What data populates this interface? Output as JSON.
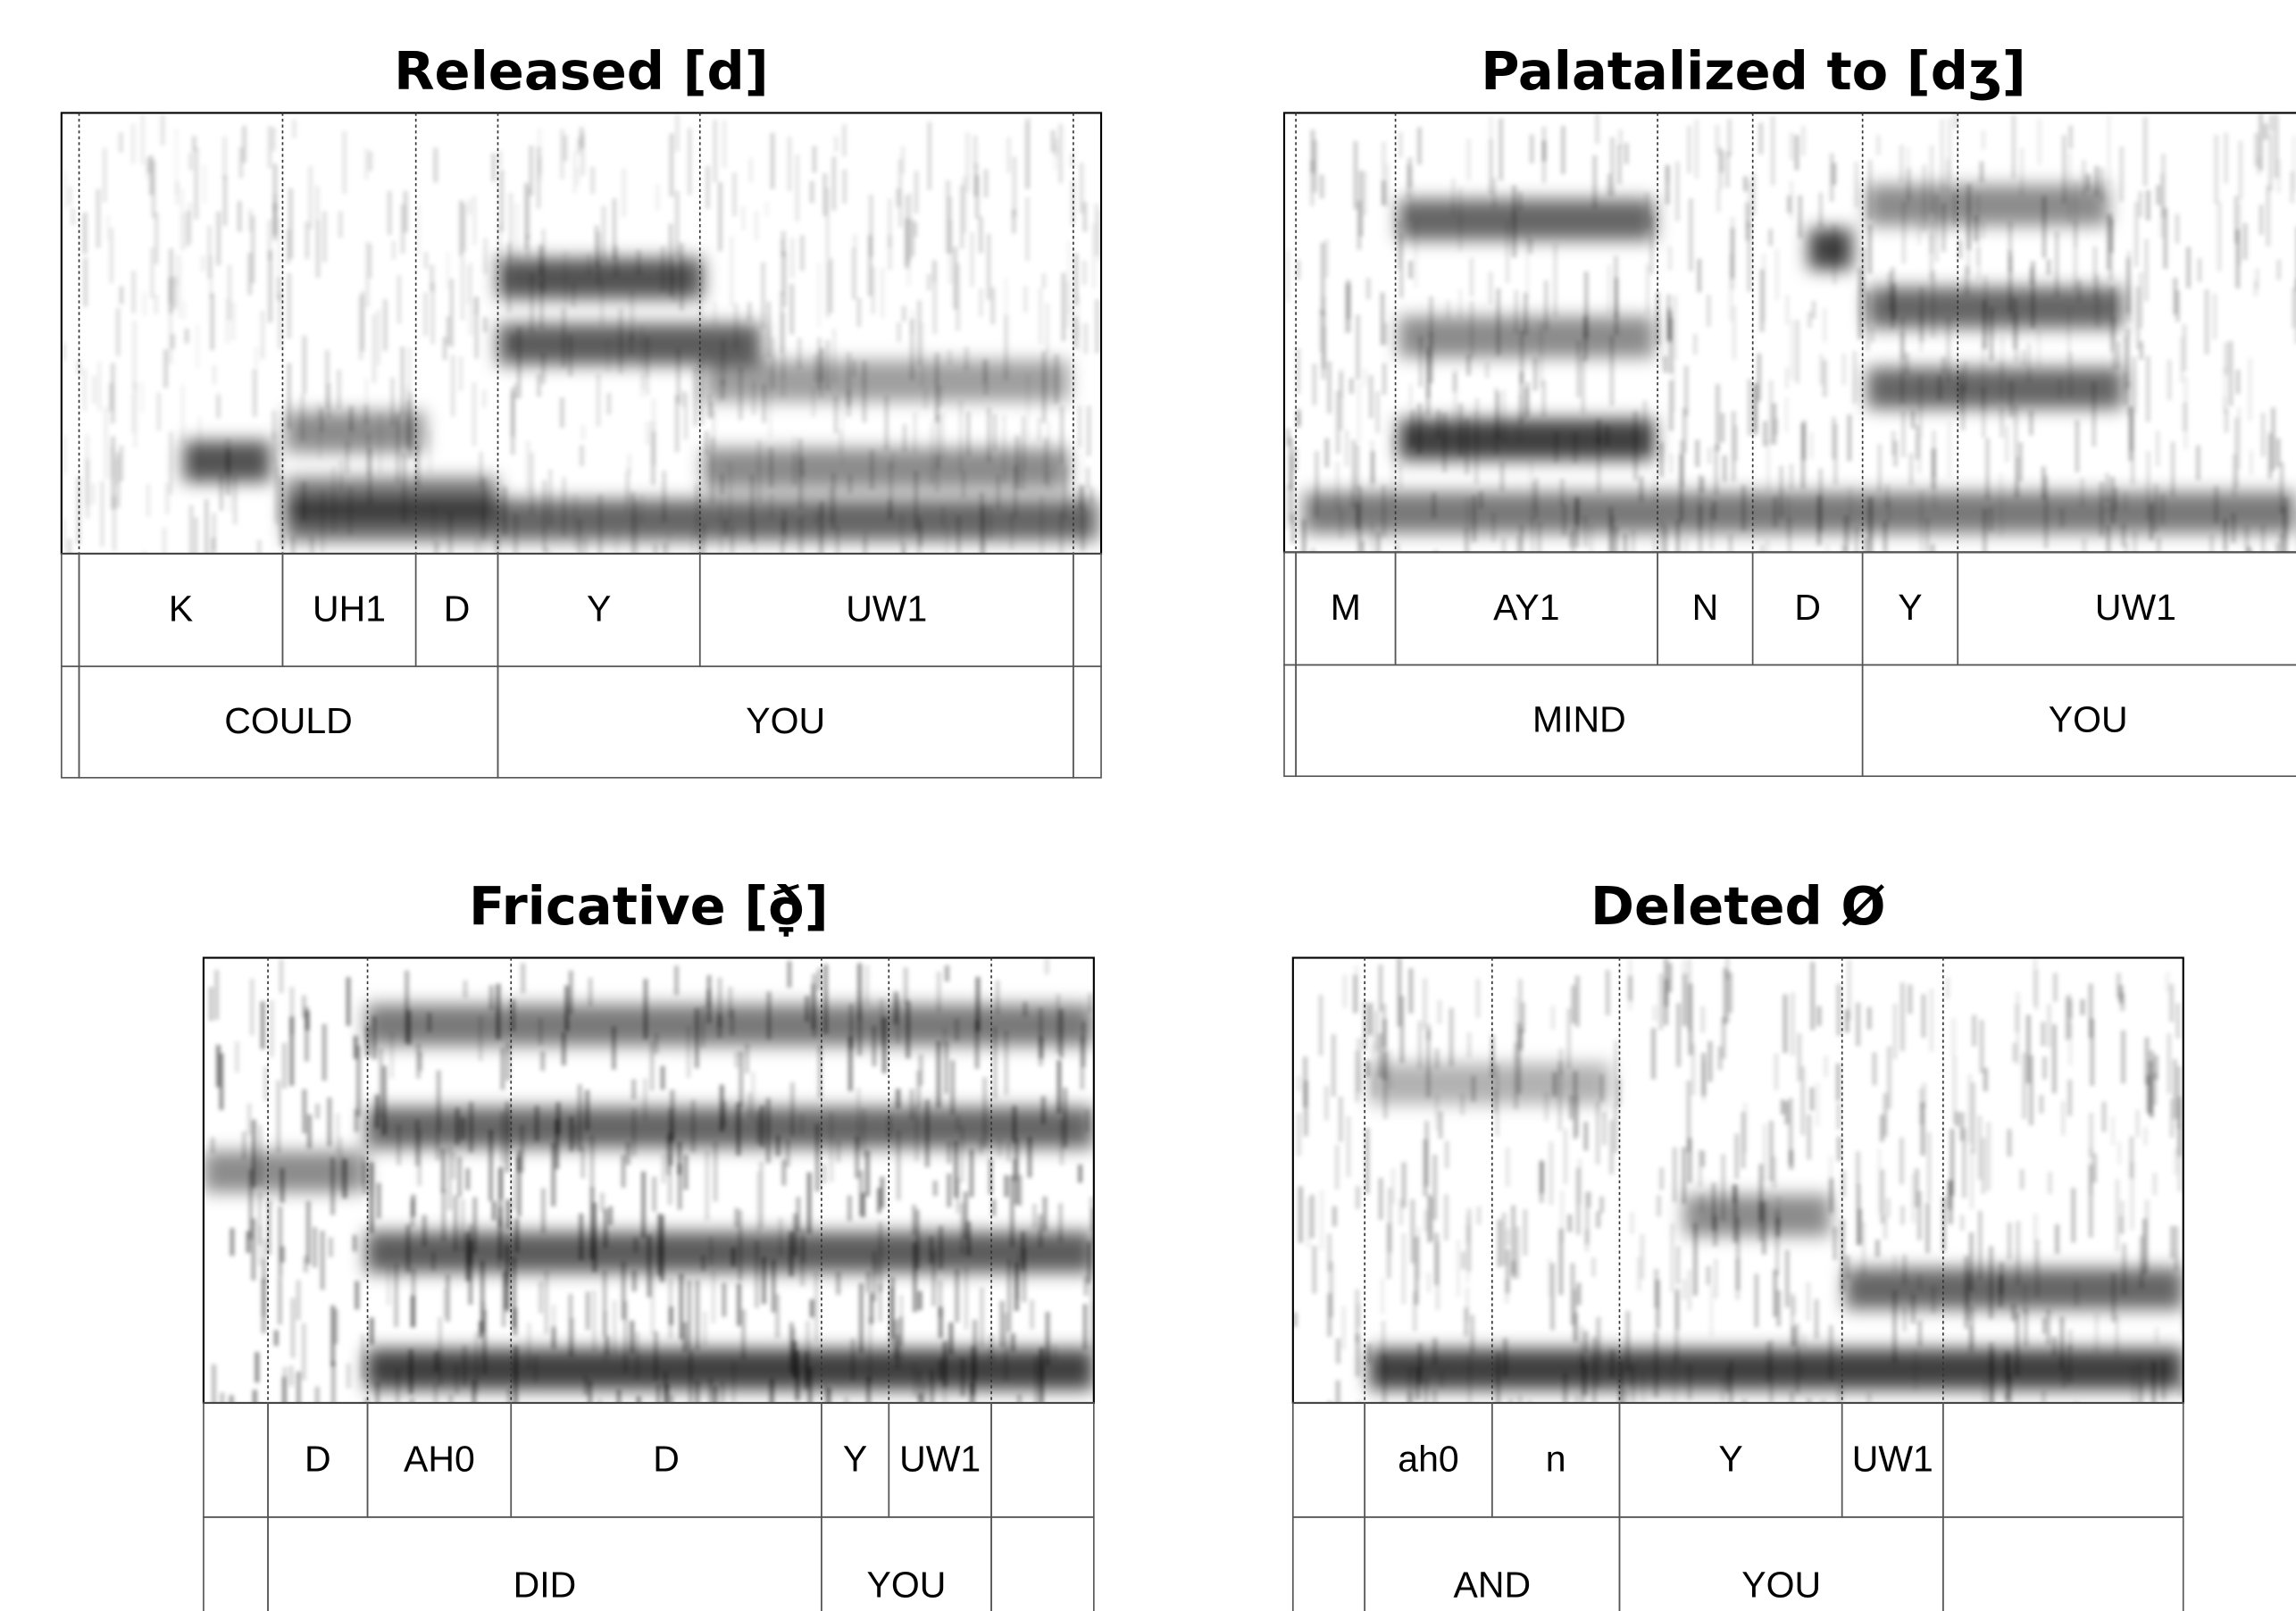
{
  "panels": [
    {
      "title": "Released [d]",
      "phones": [
        "K",
        "UH1",
        "D",
        "Y",
        "UW1"
      ],
      "words": [
        "COULD",
        "YOU"
      ]
    },
    {
      "title": "Palatalized to [dʒ]",
      "phones": [
        "M",
        "AY1",
        "N",
        "D",
        "Y",
        "UW1"
      ],
      "words": [
        "MIND",
        "YOU"
      ]
    },
    {
      "title": "Fricative [ð̞]",
      "phones": [
        "D",
        "AH0",
        "D",
        "Y",
        "UW1"
      ],
      "words": [
        "DID",
        "YOU"
      ]
    },
    {
      "title": "Deleted Ø",
      "phones": [
        "ah0",
        "n",
        "Y",
        "UW1"
      ],
      "words": [
        "AND",
        "YOU"
      ]
    }
  ]
}
